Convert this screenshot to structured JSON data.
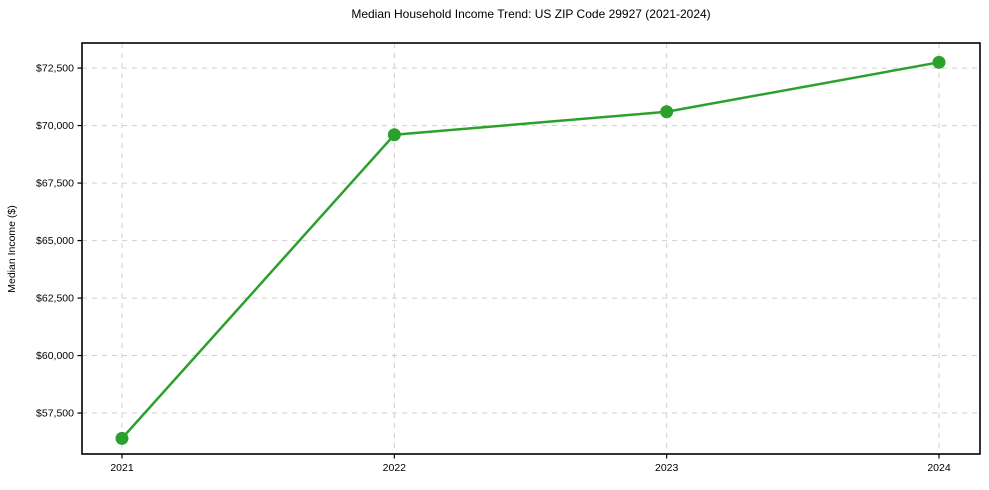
{
  "chart_data": {
    "type": "line",
    "title": "Median Household Income Trend: US ZIP Code 29927 (2021-2024)",
    "xlabel": "",
    "ylabel": "Median Income ($)",
    "categories": [
      "2021",
      "2022",
      "2023",
      "2024"
    ],
    "series": [
      {
        "name": "Median Household Income",
        "values": [
          56400,
          69600,
          70600,
          72750
        ]
      }
    ],
    "yticks": [
      57500,
      60000,
      62500,
      65000,
      67500,
      70000,
      72500
    ],
    "ytick_labels": [
      "$57,500",
      "$60,000",
      "$62,500",
      "$65,000",
      "$67,500",
      "$70,000",
      "$72,500"
    ],
    "ylim": [
      55720,
      73590
    ],
    "grid": true,
    "legend": "none",
    "line_color": "#2ca02c",
    "marker_color": "#2ca02c",
    "grid_color": "#cfcfcf",
    "spine_color": "#000000",
    "background_color": "#ffffff"
  }
}
